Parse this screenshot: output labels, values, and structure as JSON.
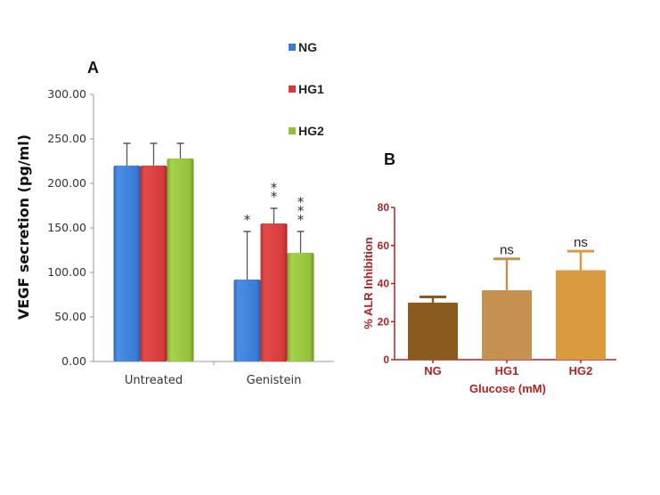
{
  "chart_data": [
    {
      "panel": "A",
      "type": "bar",
      "title": "",
      "xlabel": "",
      "ylabel": "VEGF secretion (pg/ml)",
      "ylim": [
        0,
        300
      ],
      "yticks": [
        "0.00",
        "50.00",
        "100.00",
        "150.00",
        "200.00",
        "250.00",
        "300.00"
      ],
      "ytick_values": [
        0,
        50,
        100,
        150,
        200,
        250,
        300
      ],
      "categories": [
        "Untreated",
        "Genistein"
      ],
      "series": [
        {
          "name": "NG",
          "color": "#3a7bd5",
          "values": [
            220,
            92
          ],
          "error_upper": [
            245,
            146
          ],
          "annotations": [
            "",
            "*"
          ]
        },
        {
          "name": "HG1",
          "color": "#d63b3b",
          "values": [
            220,
            155
          ],
          "error_upper": [
            245,
            172
          ],
          "annotations": [
            "",
            "**"
          ]
        },
        {
          "name": "HG2",
          "color": "#93c13a",
          "values": [
            228,
            122
          ],
          "error_upper": [
            245,
            146
          ],
          "annotations": [
            "",
            "***"
          ]
        }
      ],
      "legend_position": "top-right",
      "grid": false
    },
    {
      "panel": "B",
      "type": "bar",
      "title": "",
      "xlabel": "Glucose (mM)",
      "ylabel": "% ALR Inhibition",
      "ylim": [
        0,
        80
      ],
      "yticks": [
        "0",
        "20",
        "40",
        "60",
        "80"
      ],
      "ytick_values": [
        0,
        20,
        40,
        60,
        80
      ],
      "categories": [
        "NG",
        "HG1",
        "HG2"
      ],
      "values": [
        30,
        36.5,
        47
      ],
      "error_upper": [
        33,
        53,
        57
      ],
      "colors": [
        "#8b5a1e",
        "#c59050",
        "#d99a40"
      ],
      "annotations": [
        "",
        "ns",
        "ns"
      ],
      "axis_color": "#b22222",
      "grid": false
    }
  ]
}
